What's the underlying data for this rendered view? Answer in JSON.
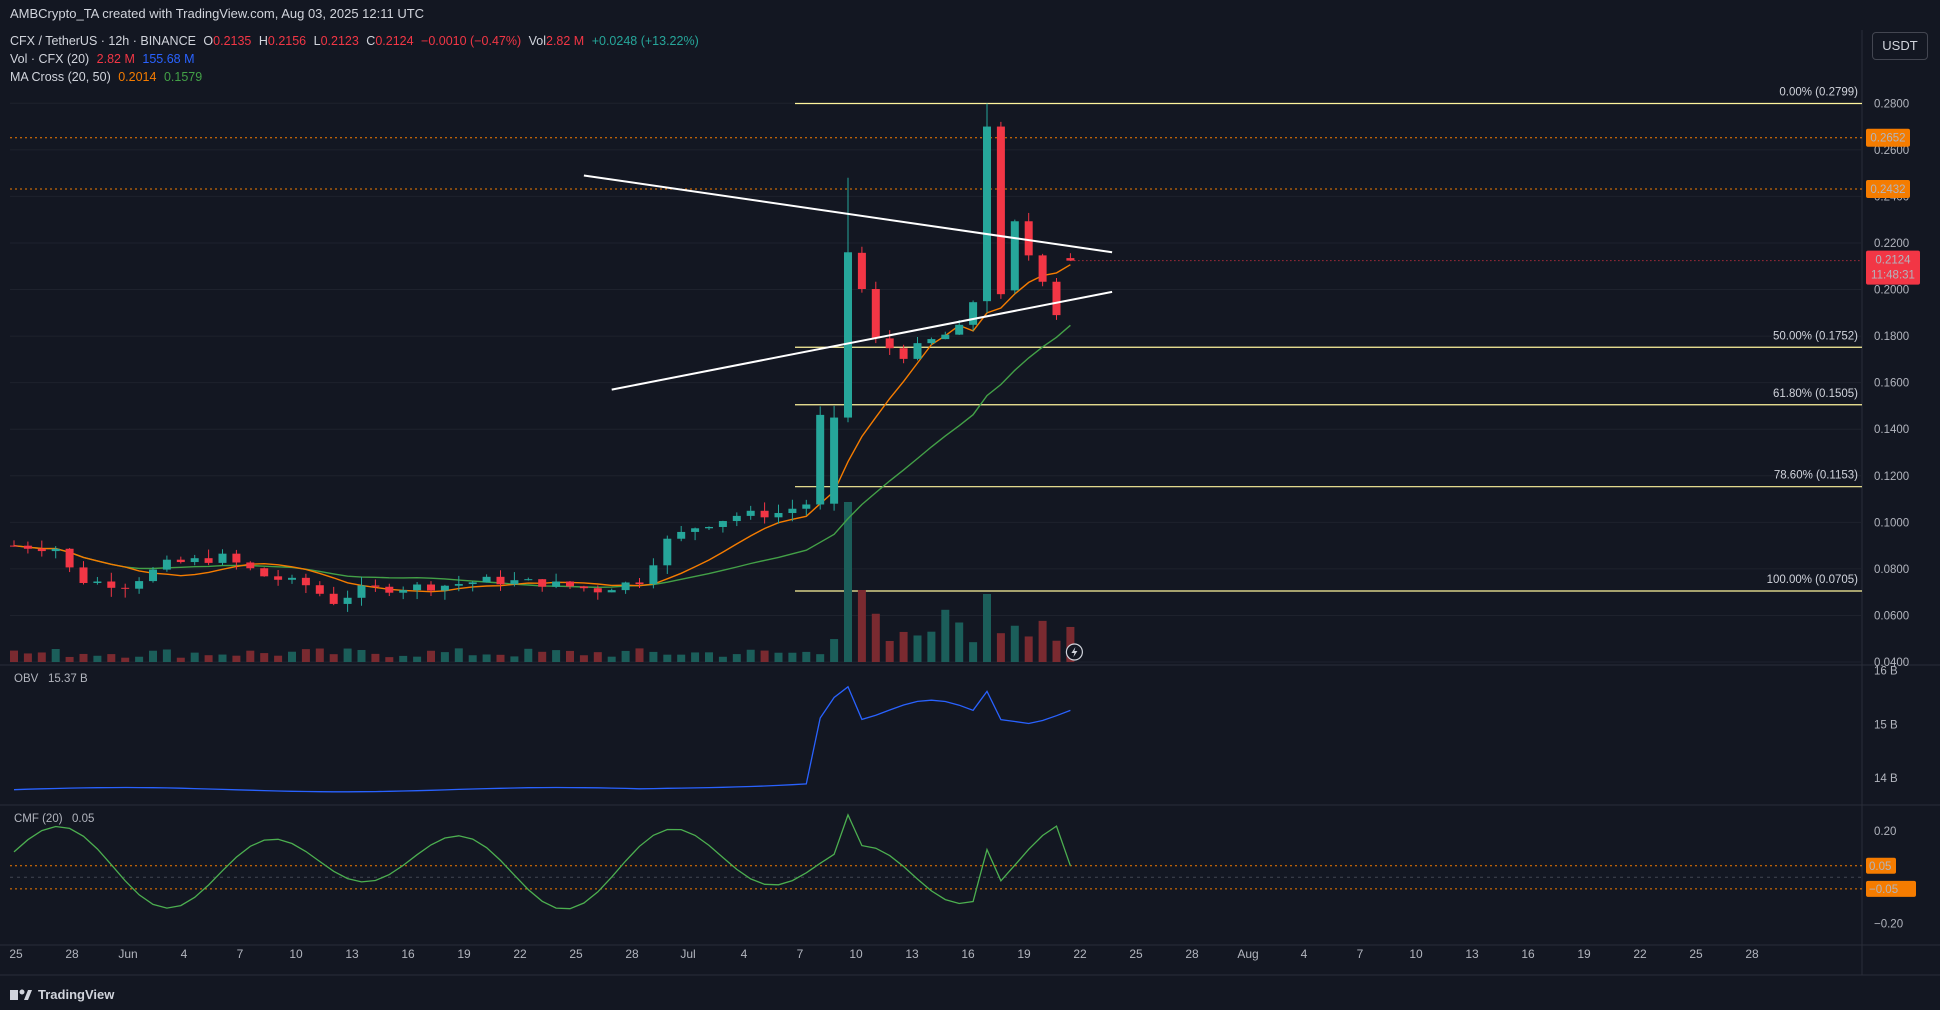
{
  "header": {
    "created": "AMBCrypto_TA created with TradingView.com, Aug 03, 2025 12:11 UTC",
    "symbol": "CFX / TetherUS · 12h · BINANCE",
    "o_lbl": "O",
    "o": "0.2135",
    "h_lbl": "H",
    "h": "0.2156",
    "l_lbl": "L",
    "l": "0.2123",
    "c_lbl": "C",
    "c": "0.2124",
    "chg": "−0.0010 (−0.47%)",
    "vol_lbl": "Vol",
    "vol": "2.82 M",
    "vol_chg": "+0.0248 (+13.22%)",
    "vol_ind": "Vol · CFX (20)",
    "vol_ind_v1": "2.82 M",
    "vol_ind_v2": "155.68 M",
    "ma_ind": "MA Cross (20, 50)",
    "ma_v1": "0.2014",
    "ma_v2": "0.1579"
  },
  "currency": "USDT",
  "footer": {
    "brand": "TradingView"
  },
  "colors": {
    "up": "#26a69a",
    "down": "#f23645",
    "ma20": "#f57c00",
    "ma50": "#43a047",
    "obv": "#2962ff",
    "cmf": "#4caf50",
    "fib": "#fff59d",
    "bg": "#131722"
  },
  "icons": {
    "brand": "tradingview-logo-icon",
    "flash": "lightning-icon"
  },
  "chart_data": [
    {
      "type": "candlestick",
      "title": "CFX / TetherUS · 12h · BINANCE",
      "ylim": [
        0.04,
        0.29
      ],
      "y_ticks": [
        "0.2800",
        "0.2600",
        "0.2400",
        "0.2200",
        "0.2000",
        "0.1800",
        "0.1600",
        "0.1400",
        "0.1200",
        "0.1000",
        "0.0800",
        "0.0600",
        "0.0400"
      ],
      "x_ticks": [
        "25",
        "28",
        "Jun",
        "4",
        "7",
        "10",
        "13",
        "16",
        "19",
        "22",
        "25",
        "28",
        "Jul",
        "4",
        "7",
        "10",
        "13",
        "16",
        "19",
        "22",
        "25",
        "28",
        "Aug",
        "4",
        "7",
        "10",
        "13",
        "16",
        "19",
        "22",
        "25",
        "28"
      ],
      "last_price": "0.2124",
      "countdown": "11:48:31",
      "horizontal_levels": [
        {
          "value": 0.2652,
          "label": "0.2652"
        },
        {
          "value": 0.2432,
          "label": "0.2432"
        }
      ],
      "fibonacci": [
        {
          "label": "0.00% (0.2799)",
          "value": 0.2799
        },
        {
          "label": "50.00% (0.1752)",
          "value": 0.1752
        },
        {
          "label": "61.80% (0.1505)",
          "value": 0.1505
        },
        {
          "label": "78.60% (0.1153)",
          "value": 0.1153
        },
        {
          "label": "100.00% (0.0705)",
          "value": 0.0705
        }
      ],
      "triangle": {
        "upper": [
          [
            20.5,
            0.249
          ],
          [
            39.5,
            0.216
          ]
        ],
        "lower": [
          [
            21.5,
            0.157
          ],
          [
            39.5,
            0.199
          ]
        ]
      },
      "candles_keypoints": [
        [
          0,
          0.09
        ],
        [
          3,
          0.089
        ],
        [
          4,
          0.08
        ],
        [
          5,
          0.075
        ],
        [
          8,
          0.073
        ],
        [
          11,
          0.082
        ],
        [
          15,
          0.085
        ],
        [
          18,
          0.077
        ],
        [
          21,
          0.073
        ],
        [
          23,
          0.066
        ],
        [
          25,
          0.071
        ],
        [
          28,
          0.072
        ],
        [
          31,
          0.073
        ],
        [
          34,
          0.075
        ],
        [
          38,
          0.074
        ],
        [
          42,
          0.071
        ],
        [
          45,
          0.075
        ],
        [
          47,
          0.092
        ],
        [
          49,
          0.098
        ],
        [
          52,
          0.103
        ],
        [
          55,
          0.104
        ],
        [
          57,
          0.108
        ],
        [
          58,
          0.145
        ],
        [
          60,
          0.216
        ],
        [
          61,
          0.2
        ],
        [
          62,
          0.178
        ],
        [
          64,
          0.172
        ],
        [
          66,
          0.178
        ],
        [
          68,
          0.183
        ],
        [
          69,
          0.195
        ],
        [
          70,
          0.27
        ],
        [
          71,
          0.198
        ],
        [
          72,
          0.228
        ],
        [
          73,
          0.215
        ],
        [
          74,
          0.205
        ],
        [
          75,
          0.19
        ],
        [
          76,
          0.212
        ]
      ],
      "series": [
        {
          "name": "MA 20",
          "value": 0.2014
        },
        {
          "name": "MA 50",
          "value": 0.1579
        }
      ]
    },
    {
      "type": "line",
      "title": "OBV",
      "current_label": "15.37 B",
      "y_ticks": [
        "16 B",
        "15 B",
        "14 B"
      ],
      "ylim": [
        13.55,
        16.05
      ]
    },
    {
      "type": "line",
      "title": "CMF (20)",
      "current_label": "0.05",
      "y_ticks": [
        "0.20",
        "−0.20"
      ],
      "levels": [
        "0.05",
        "−0.05"
      ],
      "ylim": [
        -0.28,
        0.3
      ]
    }
  ]
}
